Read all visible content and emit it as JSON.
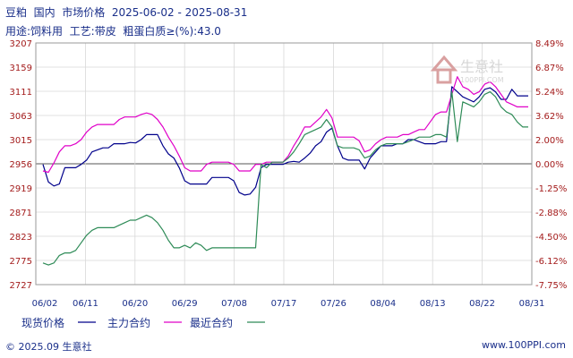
{
  "title": "豆粕  国内  市场价格  2025-06-02 - 2025-08-31",
  "subtitle": "用途:饲料用  工艺:带皮  粗蛋白质≥(%):43.0",
  "watermark": {
    "cn": "生意社",
    "en": "100PPI.COM"
  },
  "footer": {
    "left": "© 2025.09 生意社",
    "right": "www.100PPI.com"
  },
  "colors": {
    "spot": "#00008b",
    "main": "#e000c8",
    "near": "#2e8b57"
  },
  "chart_data": {
    "type": "line",
    "title": "豆粕  国内  市场价格  2025-06-02 - 2025-08-31",
    "xlabel": "",
    "ylabel": "",
    "x_ticks": [
      "06/02",
      "06/11",
      "06/20",
      "06/29",
      "07/08",
      "07/17",
      "07/26",
      "08/04",
      "08/13",
      "08/22",
      "08/31"
    ],
    "y_left_ticks": [
      "3207",
      "3159",
      "3111",
      "3063",
      "3015",
      "2956",
      "2919",
      "2871",
      "2823",
      "2775",
      "2727"
    ],
    "y_right_ticks": [
      "8.49%",
      "6.87%",
      "5.24%",
      "3.62%",
      "2.00%",
      "0.00%",
      "-1.25%",
      "-2.88%",
      "-4.50%",
      "-6.12%",
      "-7.75%"
    ],
    "ylim": [
      2727,
      3207
    ],
    "baseline": 2956,
    "grid": true,
    "legend_position": "bottom",
    "series": [
      {
        "name": "现货价格",
        "color": "#00008b",
        "x": [
          0,
          1,
          2,
          3,
          4,
          5,
          6,
          7,
          8,
          9,
          10,
          11,
          12,
          13,
          14,
          15,
          16,
          17,
          18,
          19,
          20,
          21,
          22,
          23,
          24,
          25,
          26,
          27,
          28,
          29,
          30,
          31,
          32,
          33,
          34,
          35,
          36,
          37,
          38,
          39,
          40,
          41,
          42,
          43,
          44,
          45,
          46,
          47,
          48,
          49,
          50,
          51,
          52,
          53,
          54,
          55,
          56,
          57,
          58,
          59,
          60,
          61,
          62,
          63,
          64,
          65,
          66,
          67,
          68,
          69,
          70,
          71,
          72,
          73,
          74,
          75,
          76,
          77,
          78,
          79,
          80,
          81,
          82,
          83,
          84,
          85,
          86,
          87,
          88,
          89
        ],
        "values": [
          2955,
          2928,
          2922,
          2925,
          2950,
          2950,
          2950,
          2955,
          2965,
          2985,
          2990,
          2995,
          2995,
          3005,
          3005,
          3005,
          3008,
          3007,
          3015,
          3025,
          3025,
          3025,
          3000,
          2980,
          2970,
          2950,
          2930,
          2925,
          2925,
          2925,
          2925,
          2935,
          2935,
          2935,
          2935,
          2930,
          2910,
          2905,
          2907,
          2920,
          2950,
          2955,
          2955,
          2955,
          2955,
          2960,
          2962,
          2960,
          2970,
          2982,
          3000,
          3010,
          3030,
          3038,
          3000,
          2970,
          2965,
          2965,
          2965,
          2948,
          2970,
          2985,
          3000,
          3000,
          3000,
          3005,
          3005,
          3015,
          3015,
          3010,
          3005,
          3005,
          3005,
          3010,
          3010,
          3120,
          3110,
          3100,
          3095,
          3090,
          3100,
          3115,
          3118,
          3110,
          3095,
          3095,
          3115,
          3102,
          3102,
          3102
        ]
      },
      {
        "name": "主力合约",
        "color": "#e000c8",
        "x": [
          0,
          1,
          2,
          3,
          4,
          5,
          6,
          7,
          8,
          9,
          10,
          11,
          12,
          13,
          14,
          15,
          16,
          17,
          18,
          19,
          20,
          21,
          22,
          23,
          24,
          25,
          26,
          27,
          28,
          29,
          30,
          31,
          32,
          33,
          34,
          35,
          36,
          37,
          38,
          39,
          40,
          41,
          42,
          43,
          44,
          45,
          46,
          47,
          48,
          49,
          50,
          51,
          52,
          53,
          54,
          55,
          56,
          57,
          58,
          59,
          60,
          61,
          62,
          63,
          64,
          65,
          66,
          67,
          68,
          69,
          70,
          71,
          72,
          73,
          74,
          75,
          76,
          77,
          78,
          79,
          80,
          81,
          82,
          83,
          84,
          85,
          86,
          87,
          88,
          89
        ],
        "values": [
          2945,
          2943,
          2958,
          2985,
          3000,
          3000,
          3005,
          3015,
          3030,
          3040,
          3045,
          3045,
          3045,
          3045,
          3055,
          3060,
          3060,
          3060,
          3065,
          3068,
          3065,
          3055,
          3040,
          3020,
          3000,
          2975,
          2950,
          2945,
          2945,
          2945,
          2955,
          2960,
          2960,
          2960,
          2960,
          2955,
          2945,
          2945,
          2945,
          2955,
          2955,
          2960,
          2960,
          2960,
          2960,
          2975,
          3000,
          3020,
          3040,
          3040,
          3050,
          3060,
          3075,
          3058,
          3020,
          3020,
          3020,
          3020,
          3012,
          2985,
          2990,
          3005,
          3015,
          3020,
          3020,
          3020,
          3025,
          3025,
          3030,
          3035,
          3035,
          3050,
          3065,
          3070,
          3070,
          3105,
          3140,
          3120,
          3115,
          3105,
          3110,
          3125,
          3130,
          3120,
          3105,
          3090,
          3085,
          3080,
          3080,
          3080
        ]
      },
      {
        "name": "最近合约",
        "color": "#2e8b57",
        "x": [
          0,
          1,
          2,
          3,
          4,
          5,
          6,
          7,
          8,
          9,
          10,
          11,
          12,
          13,
          14,
          15,
          16,
          17,
          18,
          19,
          20,
          21,
          22,
          23,
          24,
          25,
          26,
          27,
          28,
          29,
          30,
          31,
          32,
          33,
          34,
          35,
          36,
          37,
          38,
          39,
          40,
          41,
          42,
          43,
          44,
          45,
          46,
          47,
          48,
          49,
          50,
          51,
          52,
          53,
          54,
          55,
          56,
          57,
          58,
          59,
          60,
          61,
          62,
          63,
          64,
          65,
          66,
          67,
          68,
          69,
          70,
          71,
          72,
          73,
          74,
          75,
          76,
          77,
          78,
          79,
          80,
          81,
          82,
          83,
          84,
          85,
          86,
          87,
          88,
          89
        ],
        "values": [
          2770,
          2766,
          2770,
          2785,
          2790,
          2790,
          2795,
          2810,
          2825,
          2835,
          2840,
          2840,
          2840,
          2840,
          2845,
          2850,
          2855,
          2855,
          2860,
          2865,
          2860,
          2850,
          2835,
          2815,
          2800,
          2800,
          2805,
          2800,
          2810,
          2805,
          2795,
          2800,
          2800,
          2800,
          2800,
          2800,
          2800,
          2800,
          2800,
          2800,
          2955,
          2950,
          2960,
          2960,
          2960,
          2970,
          2985,
          3005,
          3025,
          3030,
          3035,
          3040,
          3055,
          3040,
          3000,
          2995,
          2995,
          2995,
          2990,
          2970,
          2975,
          2990,
          3000,
          3005,
          3005,
          3005,
          3005,
          3010,
          3015,
          3020,
          3020,
          3020,
          3025,
          3025,
          3020,
          3110,
          3010,
          3090,
          3085,
          3080,
          3090,
          3105,
          3110,
          3100,
          3080,
          3070,
          3065,
          3050,
          3040,
          3040
        ]
      }
    ]
  }
}
